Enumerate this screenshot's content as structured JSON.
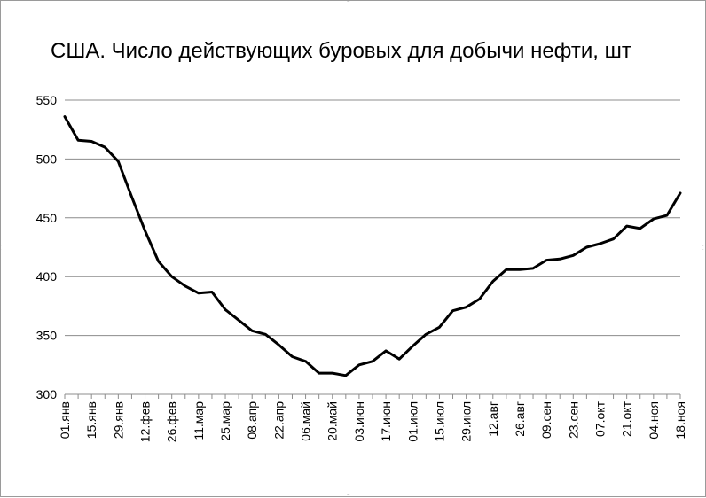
{
  "chart_data": {
    "type": "line",
    "title": "США. Число действующих буровых для добычи нефти, шт",
    "ylim": [
      300,
      550
    ],
    "y_ticks": [
      300,
      350,
      400,
      450,
      500,
      550
    ],
    "grid": true,
    "legend": "none",
    "x_tick_labels": [
      "01.янв",
      "15.янв",
      "29.янв",
      "12.фев",
      "26.фев",
      "11.мар",
      "25.мар",
      "08.апр",
      "22.апр",
      "06.май",
      "20.май",
      "03.июн",
      "17.июн",
      "01.июл",
      "15.июл",
      "29.июл",
      "12.авг",
      "26.авг",
      "09.сен",
      "23.сен",
      "07.окт",
      "21.окт",
      "04.ноя",
      "18.ноя"
    ],
    "series": [
      {
        "color": "#000000",
        "values": [
          536,
          516,
          515,
          510,
          498,
          468,
          439,
          413,
          400,
          392,
          386,
          387,
          372,
          363,
          354,
          351,
          342,
          332,
          328,
          318,
          318,
          316,
          325,
          328,
          337,
          330,
          341,
          351,
          357,
          371,
          374,
          381,
          396,
          406,
          406,
          407,
          414,
          415,
          418,
          425,
          428,
          432,
          443,
          441,
          449,
          452,
          471
        ]
      }
    ]
  }
}
